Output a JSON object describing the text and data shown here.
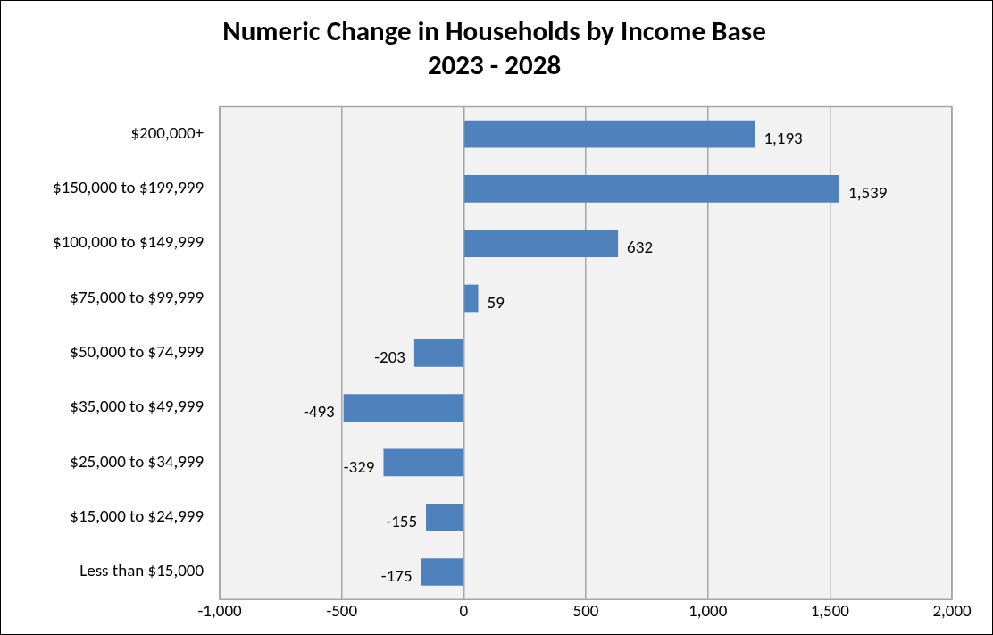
{
  "chart_data": {
    "type": "bar",
    "orientation": "horizontal",
    "title": "Numeric Change in Households by Income Base\n2023 - 2028",
    "categories": [
      "$200,000+",
      "$150,000 to $199,999",
      "$100,000 to $149,999",
      "$75,000 to $99,999",
      "$50,000 to $74,999",
      "$35,000 to $49,999",
      "$25,000 to $34,999",
      "$15,000 to $24,999",
      "Less than $15,000"
    ],
    "values": [
      1193,
      1539,
      632,
      59,
      -203,
      -493,
      -329,
      -155,
      -175
    ],
    "value_labels": [
      "1,193",
      "1,539",
      "632",
      "59",
      "-203",
      "-493",
      "-329",
      "-155",
      "-175"
    ],
    "color": "#4f81bd",
    "xlim": [
      -1000,
      2000
    ],
    "xticks": [
      {
        "value": -1000,
        "label": "-1,000"
      },
      {
        "value": -500,
        "label": "-500"
      },
      {
        "value": 0,
        "label": "0"
      },
      {
        "value": 500,
        "label": "500"
      },
      {
        "value": 1000,
        "label": "1,000"
      },
      {
        "value": 1500,
        "label": "1,500"
      },
      {
        "value": 2000,
        "label": "2,000"
      }
    ],
    "grid": "x"
  }
}
